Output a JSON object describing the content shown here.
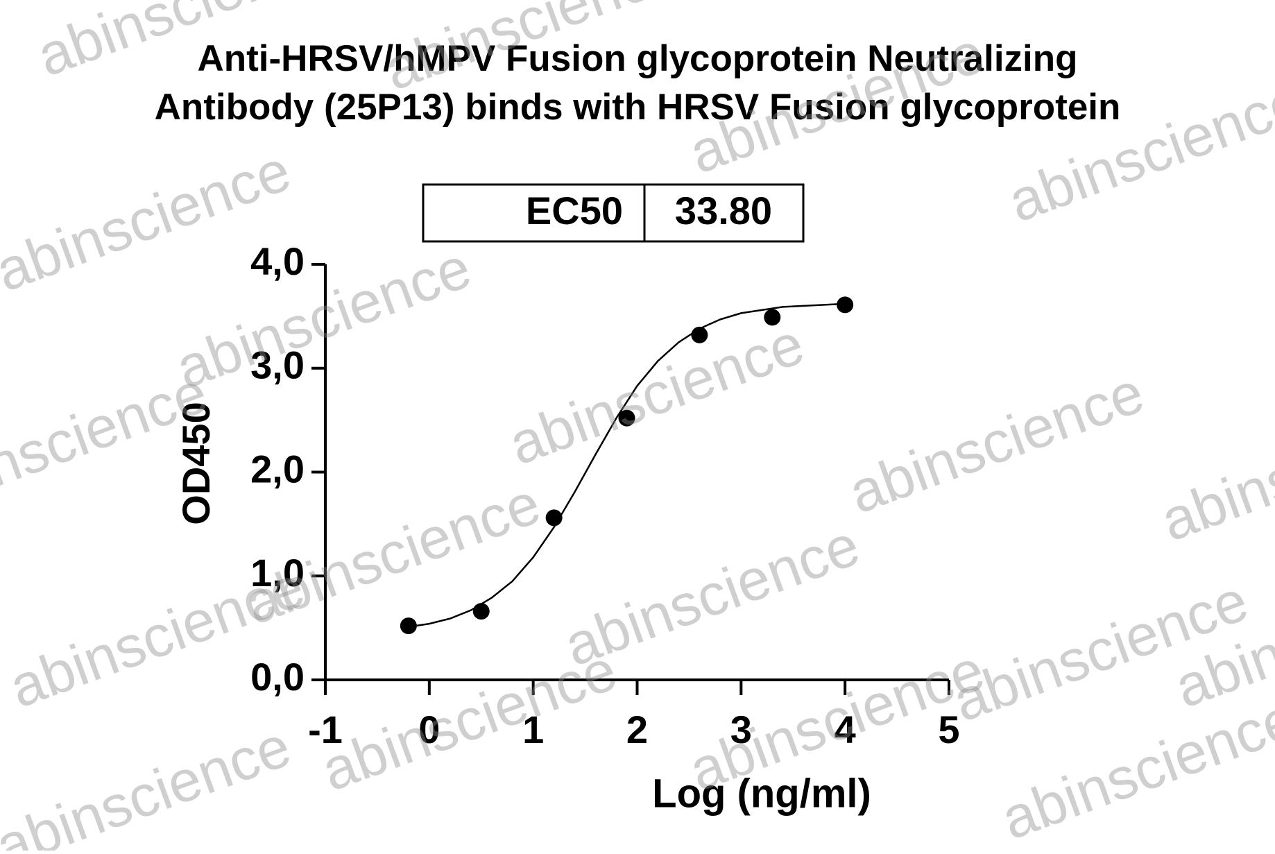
{
  "chart_data": {
    "type": "scatter",
    "title": [
      "Anti-HRSV/hMPV Fusion glycoprotein Neutralizing",
      "Antibody (25P13) binds with HRSV Fusion glycoprotein"
    ],
    "ec50_table": [
      "EC50",
      "33.80"
    ],
    "x_label": "Log (ng/ml)",
    "y_label": "OD450",
    "xlim": [
      -1,
      5
    ],
    "xticks": [
      -1,
      0,
      1,
      2,
      3,
      4,
      5
    ],
    "ylim": [
      0,
      4
    ],
    "yticks": [
      {
        "value": 0,
        "label": "0,0"
      },
      {
        "value": 1,
        "label": "1,0"
      },
      {
        "value": 2,
        "label": "2,0"
      },
      {
        "value": 3,
        "label": "3,0"
      },
      {
        "value": 4,
        "label": "4,0"
      }
    ],
    "points": {
      "color": "#000000",
      "x": [
        -0.2,
        0.5,
        1.2,
        1.9,
        2.6,
        3.3,
        4.0
      ],
      "values": [
        0.52,
        0.66,
        1.56,
        2.52,
        3.32,
        3.49,
        3.61
      ]
    },
    "fit": {
      "color": "#000000",
      "x": [
        -0.2,
        0.0,
        0.2,
        0.4,
        0.6,
        0.8,
        1.0,
        1.2,
        1.4,
        1.6,
        1.8,
        2.0,
        2.2,
        2.4,
        2.6,
        2.8,
        3.0,
        3.2,
        3.4,
        3.6,
        3.8,
        4.0
      ],
      "values": [
        0.51,
        0.54,
        0.59,
        0.67,
        0.79,
        0.95,
        1.18,
        1.47,
        1.81,
        2.17,
        2.52,
        2.83,
        3.07,
        3.25,
        3.38,
        3.47,
        3.53,
        3.56,
        3.59,
        3.6,
        3.61,
        3.62
      ]
    },
    "watermark": "abinscience"
  }
}
